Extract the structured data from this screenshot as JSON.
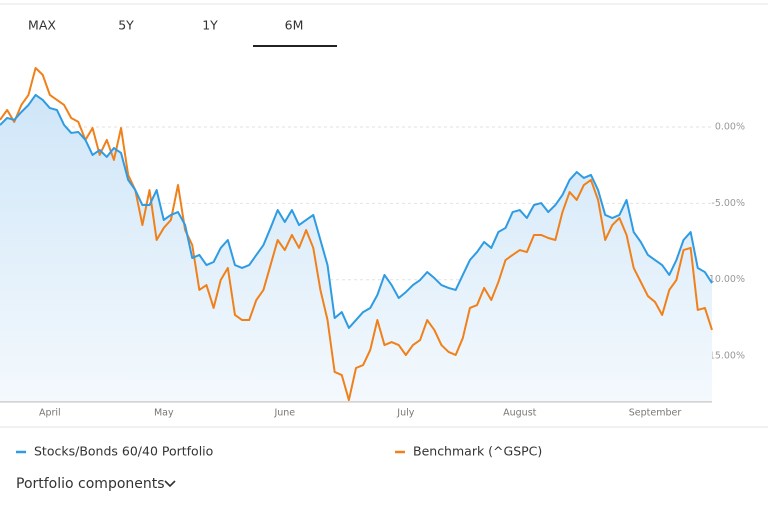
{
  "tabs": [
    "MAX",
    "5Y",
    "1Y",
    "6M"
  ],
  "chart_data": {
    "type": "line",
    "categories": [
      null,
      null,
      null,
      null,
      null,
      null,
      null,
      "April",
      null,
      null,
      null,
      null,
      null,
      null,
      null,
      null,
      null,
      null,
      null,
      null,
      null,
      null,
      null,
      "May",
      null,
      null,
      null,
      null,
      null,
      null,
      null,
      null,
      null,
      null,
      null,
      null,
      null,
      null,
      null,
      null,
      "June",
      null,
      null,
      null,
      null,
      null,
      null,
      null,
      null,
      null,
      null,
      null,
      null,
      null,
      null,
      null,
      null,
      "July",
      null,
      null,
      null,
      null,
      null,
      null,
      null,
      null,
      null,
      null,
      null,
      null,
      null,
      null,
      null,
      "August",
      null,
      null,
      null,
      null,
      null,
      null,
      null,
      null,
      null,
      null,
      null,
      null,
      null,
      null,
      null,
      null,
      null,
      null,
      "September",
      null,
      null,
      null,
      null,
      null,
      null,
      null,
      null
    ],
    "series": [
      {
        "name": "Stocks/Bonds 60/40 Portfolio",
        "color": "#2f9be3",
        "values": [
          0.13,
          0.59,
          0.46,
          0.98,
          1.44,
          2.1,
          1.77,
          1.24,
          1.11,
          0.13,
          -0.39,
          -0.33,
          -0.85,
          -1.83,
          -1.51,
          -1.96,
          -1.38,
          -1.7,
          -3.47,
          -4.13,
          -5.11,
          -5.11,
          -4.13,
          -6.09,
          -5.76,
          -5.57,
          -6.42,
          -8.58,
          -8.38,
          -9.04,
          -8.84,
          -7.92,
          -7.4,
          -9.04,
          -9.23,
          -9.04,
          -8.38,
          -7.73,
          -6.61,
          -5.44,
          -6.22,
          -5.44,
          -6.42,
          -6.09,
          -5.76,
          -7.4,
          -9.04,
          -12.51,
          -12.12,
          -13.16,
          -12.64,
          -12.12,
          -11.85,
          -11.0,
          -9.69,
          -10.35,
          -11.2,
          -10.81,
          -10.35,
          -10.02,
          -9.5,
          -9.89,
          -10.35,
          -10.54,
          -10.67,
          -9.69,
          -8.71,
          -8.19,
          -7.53,
          -7.92,
          -6.88,
          -6.61,
          -5.57,
          -5.44,
          -5.96,
          -5.11,
          -4.98,
          -5.57,
          -5.11,
          -4.45,
          -3.47,
          -2.95,
          -3.34,
          -3.14,
          -4.13,
          -5.76,
          -5.96,
          -5.76,
          -4.78,
          -6.88,
          -7.53,
          -8.38,
          -8.71,
          -9.04,
          -9.69,
          -8.71,
          -7.4,
          -6.88,
          -9.23,
          -9.5,
          -10.22
        ]
      },
      {
        "name": "Benchmark (^GSPC)",
        "color": "#f0811a",
        "values": [
          0.46,
          1.11,
          0.33,
          1.44,
          2.1,
          3.86,
          3.41,
          2.1,
          1.77,
          1.44,
          0.59,
          0.33,
          -0.85,
          -0.07,
          -1.83,
          -0.85,
          -2.16,
          -0.07,
          -3.14,
          -4.13,
          -6.42,
          -4.13,
          -7.4,
          -6.61,
          -6.09,
          -3.8,
          -6.75,
          -7.73,
          -10.67,
          -10.35,
          -11.85,
          -10.02,
          -9.23,
          -12.31,
          -12.64,
          -12.64,
          -11.33,
          -10.67,
          -9.04,
          -7.4,
          -8.06,
          -7.07,
          -7.92,
          -6.75,
          -7.92,
          -10.67,
          -12.64,
          -16.04,
          -16.24,
          -17.88,
          -15.78,
          -15.59,
          -14.6,
          -12.64,
          -14.28,
          -14.08,
          -14.28,
          -14.93,
          -14.28,
          -13.95,
          -12.64,
          -13.29,
          -14.28,
          -14.73,
          -14.93,
          -13.82,
          -11.85,
          -11.66,
          -10.54,
          -11.33,
          -10.15,
          -8.71,
          -8.38,
          -8.06,
          -8.19,
          -7.07,
          -7.07,
          -7.27,
          -7.4,
          -5.57,
          -4.26,
          -4.78,
          -3.8,
          -3.47,
          -4.78,
          -7.4,
          -6.42,
          -5.96,
          -7.07,
          -9.23,
          -10.15,
          -11.07,
          -11.46,
          -12.31,
          -10.67,
          -10.02,
          -8.06,
          -7.92,
          -11.98,
          -11.85,
          -13.29
        ]
      }
    ],
    "ylim": [
      -18,
      5
    ],
    "yticks": [
      {
        "value": 0,
        "label": "0.00%"
      },
      {
        "value": -5,
        "label": "-5.00%"
      },
      {
        "value": -10,
        "label": "-10.00%"
      },
      {
        "value": -15,
        "label": "-15.00%"
      }
    ],
    "grid": true
  },
  "footer": {
    "link": "Portfolio components"
  }
}
